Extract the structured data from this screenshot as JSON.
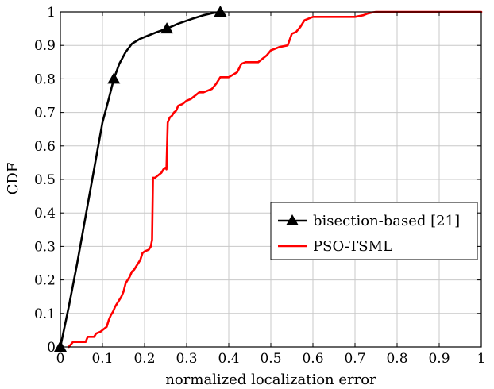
{
  "chart_data": {
    "type": "line",
    "xlabel": "normalized localization error",
    "ylabel": "CDF",
    "xlim": [
      0,
      1
    ],
    "ylim": [
      0,
      1
    ],
    "x_ticks": [
      0,
      0.1,
      0.2,
      0.3,
      0.4,
      0.5,
      0.6,
      0.7,
      0.8,
      0.9,
      1
    ],
    "x_tick_labels": [
      "0",
      "0.1",
      "0.2",
      "0.3",
      "0.4",
      "0.5",
      "0.6",
      "0.7",
      "0.8",
      "0.9",
      "1"
    ],
    "y_ticks": [
      0,
      0.1,
      0.2,
      0.3,
      0.4,
      0.5,
      0.6,
      0.7,
      0.8,
      0.9,
      1
    ],
    "y_tick_labels": [
      "0",
      "0.1",
      "0.2",
      "0.3",
      "0.4",
      "0.5",
      "0.6",
      "0.7",
      "0.8",
      "0.9",
      "1"
    ],
    "grid": true,
    "legend_position": "center-right",
    "series": [
      {
        "name": "bisection-based [21]",
        "color": "#000000",
        "marker": "triangle",
        "x": [
          0,
          0.02,
          0.04,
          0.06,
          0.08,
          0.1,
          0.115,
          0.127,
          0.14,
          0.155,
          0.17,
          0.19,
          0.21,
          0.23,
          0.253,
          0.28,
          0.31,
          0.34,
          0.36,
          0.38
        ],
        "y": [
          0,
          0.12,
          0.25,
          0.39,
          0.53,
          0.67,
          0.74,
          0.8,
          0.845,
          0.88,
          0.905,
          0.92,
          0.93,
          0.94,
          0.95,
          0.965,
          0.978,
          0.99,
          0.996,
          1.0
        ],
        "marker_points": [
          [
            0,
            0
          ],
          [
            0.127,
            0.8
          ],
          [
            0.253,
            0.95
          ],
          [
            0.38,
            1.0
          ]
        ]
      },
      {
        "name": "PSO-TSML",
        "color": "#ff0000",
        "x": [
          0.02,
          0.03,
          0.06,
          0.065,
          0.08,
          0.085,
          0.095,
          0.1,
          0.11,
          0.115,
          0.12,
          0.125,
          0.13,
          0.135,
          0.14,
          0.145,
          0.15,
          0.155,
          0.16,
          0.165,
          0.17,
          0.175,
          0.18,
          0.185,
          0.19,
          0.195,
          0.2,
          0.21,
          0.215,
          0.218,
          0.22,
          0.225,
          0.23,
          0.24,
          0.245,
          0.25,
          0.252,
          0.255,
          0.26,
          0.265,
          0.27,
          0.275,
          0.28,
          0.29,
          0.3,
          0.31,
          0.32,
          0.33,
          0.34,
          0.35,
          0.36,
          0.37,
          0.38,
          0.4,
          0.42,
          0.43,
          0.44,
          0.45,
          0.47,
          0.49,
          0.5,
          0.51,
          0.52,
          0.54,
          0.55,
          0.56,
          0.57,
          0.58,
          0.59,
          0.6,
          0.65,
          0.7,
          0.72,
          0.73,
          0.74,
          0.75,
          0.8,
          1.0
        ],
        "y": [
          0,
          0.015,
          0.015,
          0.03,
          0.03,
          0.04,
          0.045,
          0.05,
          0.06,
          0.08,
          0.095,
          0.105,
          0.12,
          0.13,
          0.14,
          0.15,
          0.165,
          0.19,
          0.2,
          0.21,
          0.225,
          0.23,
          0.24,
          0.25,
          0.26,
          0.28,
          0.285,
          0.29,
          0.3,
          0.32,
          0.505,
          0.505,
          0.51,
          0.52,
          0.53,
          0.535,
          0.53,
          0.67,
          0.685,
          0.69,
          0.7,
          0.705,
          0.72,
          0.725,
          0.735,
          0.74,
          0.75,
          0.76,
          0.76,
          0.765,
          0.77,
          0.785,
          0.805,
          0.805,
          0.82,
          0.845,
          0.85,
          0.85,
          0.85,
          0.87,
          0.885,
          0.89,
          0.895,
          0.9,
          0.935,
          0.94,
          0.955,
          0.975,
          0.98,
          0.985,
          0.985,
          0.985,
          0.99,
          0.995,
          0.998,
          1.0,
          1.0,
          1.0
        ]
      }
    ]
  }
}
